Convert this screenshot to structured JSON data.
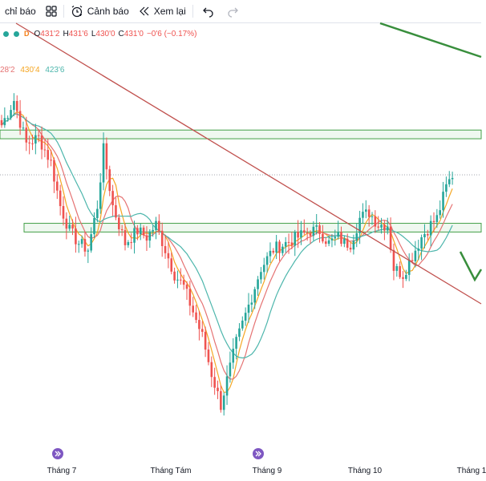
{
  "toolbar": {
    "indicators_label": "chỉ báo",
    "alert_label": "Cảnh báo",
    "replay_label": "Xem lại"
  },
  "legend": {
    "interval": "D",
    "open_key": "O",
    "open_val": "431'2",
    "high_key": "H",
    "high_val": "431'6",
    "low_key": "L",
    "low_val": "430'0",
    "close_key": "C",
    "close_val": "431'0",
    "change": "−0'6 (−0.17%)"
  },
  "ma_legend": [
    {
      "value": "28'2",
      "color": "#e57373"
    },
    {
      "value": "430'4",
      "color": "#f5a623"
    },
    {
      "value": "423'6",
      "color": "#4db6ac"
    }
  ],
  "colors": {
    "up": "#26a69a",
    "down": "#ef5350",
    "trend_red": "#c0504d",
    "trend_green": "#388e3c",
    "zone_fill": "#e8f5e9",
    "zone_border": "#43a047",
    "ma_fast": "#e57373",
    "ma_mid": "#f5a623",
    "ma_slow": "#4db6ac"
  },
  "x_axis": {
    "labels": [
      "Tháng 7",
      "Tháng Tám",
      "Tháng 9",
      "Tháng 10",
      "Tháng 1"
    ],
    "event_icons": [
      "event-marker-icon",
      "event-marker-icon"
    ]
  },
  "chart_data": {
    "type": "candlestick",
    "x_range": [
      "Tháng 7",
      "Tháng 1"
    ],
    "price_range": [
      385,
      450
    ],
    "waypoints": [
      [
        0,
        437
      ],
      [
        4,
        441
      ],
      [
        8,
        434
      ],
      [
        12,
        435
      ],
      [
        16,
        431
      ],
      [
        19,
        424
      ],
      [
        22,
        420
      ],
      [
        25,
        418
      ],
      [
        28,
        417
      ],
      [
        31,
        424
      ],
      [
        33,
        433
      ],
      [
        36,
        424
      ],
      [
        40,
        418
      ],
      [
        44,
        420
      ],
      [
        47,
        419
      ],
      [
        50,
        421
      ],
      [
        53,
        417
      ],
      [
        56,
        413
      ],
      [
        59,
        411
      ],
      [
        62,
        407
      ],
      [
        65,
        403
      ],
      [
        68,
        397
      ],
      [
        71,
        392
      ],
      [
        73,
        396
      ],
      [
        76,
        402
      ],
      [
        80,
        408
      ],
      [
        84,
        414
      ],
      [
        88,
        417
      ],
      [
        92,
        418
      ],
      [
        96,
        419
      ],
      [
        100,
        420
      ],
      [
        103,
        420
      ],
      [
        106,
        418
      ],
      [
        109,
        419
      ],
      [
        111,
        418
      ],
      [
        113,
        418
      ],
      [
        116,
        422
      ],
      [
        119,
        423
      ],
      [
        122,
        421
      ],
      [
        125,
        421
      ],
      [
        127,
        414
      ],
      [
        130,
        413
      ],
      [
        133,
        416
      ],
      [
        136,
        419
      ],
      [
        139,
        421
      ],
      [
        141,
        422
      ],
      [
        144,
        427
      ],
      [
        146,
        429
      ]
    ],
    "ma_series": [
      "MA fast",
      "MA mid",
      "MA slow"
    ],
    "support_resistance_zones": [
      [
        434.8,
        436.2
      ],
      [
        419.8,
        421.2
      ]
    ],
    "trendlines": [
      "red descending",
      "green descending",
      "green projection"
    ]
  }
}
